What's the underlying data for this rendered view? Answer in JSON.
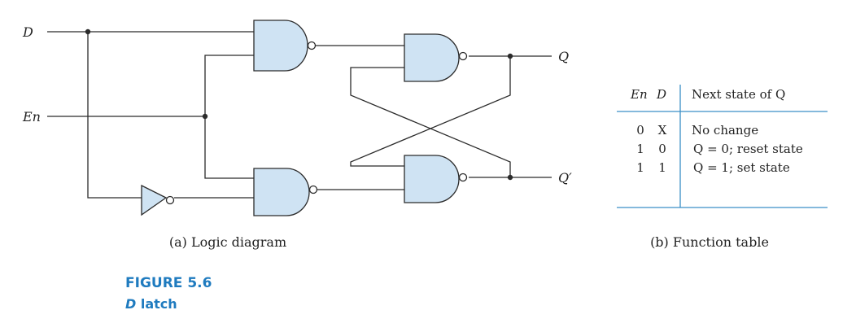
{
  "colors": {
    "gate_fill": "#cfe3f3",
    "wire": "#2b2b2b",
    "figure_label": "#1f7bbf",
    "table_rule": "#3a8fc6"
  },
  "diagram": {
    "signals": {
      "d": "D",
      "en": "En",
      "q": "Q",
      "q_prime": "Q′"
    },
    "caption": "(a) Logic diagram"
  },
  "function_table": {
    "headers": {
      "en": "En",
      "d": "D",
      "next_state": "Next state of Q"
    },
    "rows": [
      {
        "en": "0",
        "d": "X",
        "next_state": "No change"
      },
      {
        "en": "1",
        "d": "0",
        "next_state": "Q = 0; reset state"
      },
      {
        "en": "1",
        "d": "1",
        "next_state": "Q = 1; set state"
      }
    ],
    "caption": "(b) Function table"
  },
  "figure": {
    "number": "FIGURE 5.6",
    "title_var": "D",
    "title_rest": " latch"
  }
}
